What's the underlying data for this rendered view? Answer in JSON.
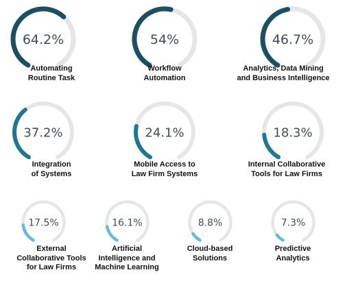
{
  "chart_data": {
    "type": "radial-gauge",
    "title": "",
    "items": [
      {
        "label": "Automating\nRoutine Task",
        "value": 64.2,
        "display": "64.2%",
        "color": "#1d4f62"
      },
      {
        "label": "Workflow\nAutomation",
        "value": 54,
        "display": "54%",
        "color": "#1d4f62"
      },
      {
        "label": "Analytics, Data Mining\nand Business Intelligence",
        "value": 46.7,
        "display": "46.7%",
        "color": "#1d4f62"
      },
      {
        "label": "Integration\nof Systems",
        "value": 37.2,
        "display": "37.2%",
        "color": "#1e788f"
      },
      {
        "label": "Mobile Access to\nLaw Firm Systems",
        "value": 24.1,
        "display": "24.1%",
        "color": "#1e788f"
      },
      {
        "label": "Internal Collaborative\nTools for Law Firms",
        "value": 18.3,
        "display": "18.3%",
        "color": "#1e788f"
      },
      {
        "label": "External\nCollaborative Tools\nfor Law Firms",
        "value": 17.5,
        "display": "17.5%",
        "color": "#6ab9da"
      },
      {
        "label": "Artificial\nIntelligence and\nMachine Learning",
        "value": 16.1,
        "display": "16.1%",
        "color": "#6ab9da"
      },
      {
        "label": "Cloud-based\nSolutions",
        "value": 8.8,
        "display": "8.8%",
        "color": "#6ab9da"
      },
      {
        "label": "Predictive\nAnalytics",
        "value": 7.3,
        "display": "7.3%",
        "color": "#6ab9da"
      }
    ],
    "track_color": "#e6e6e6"
  }
}
